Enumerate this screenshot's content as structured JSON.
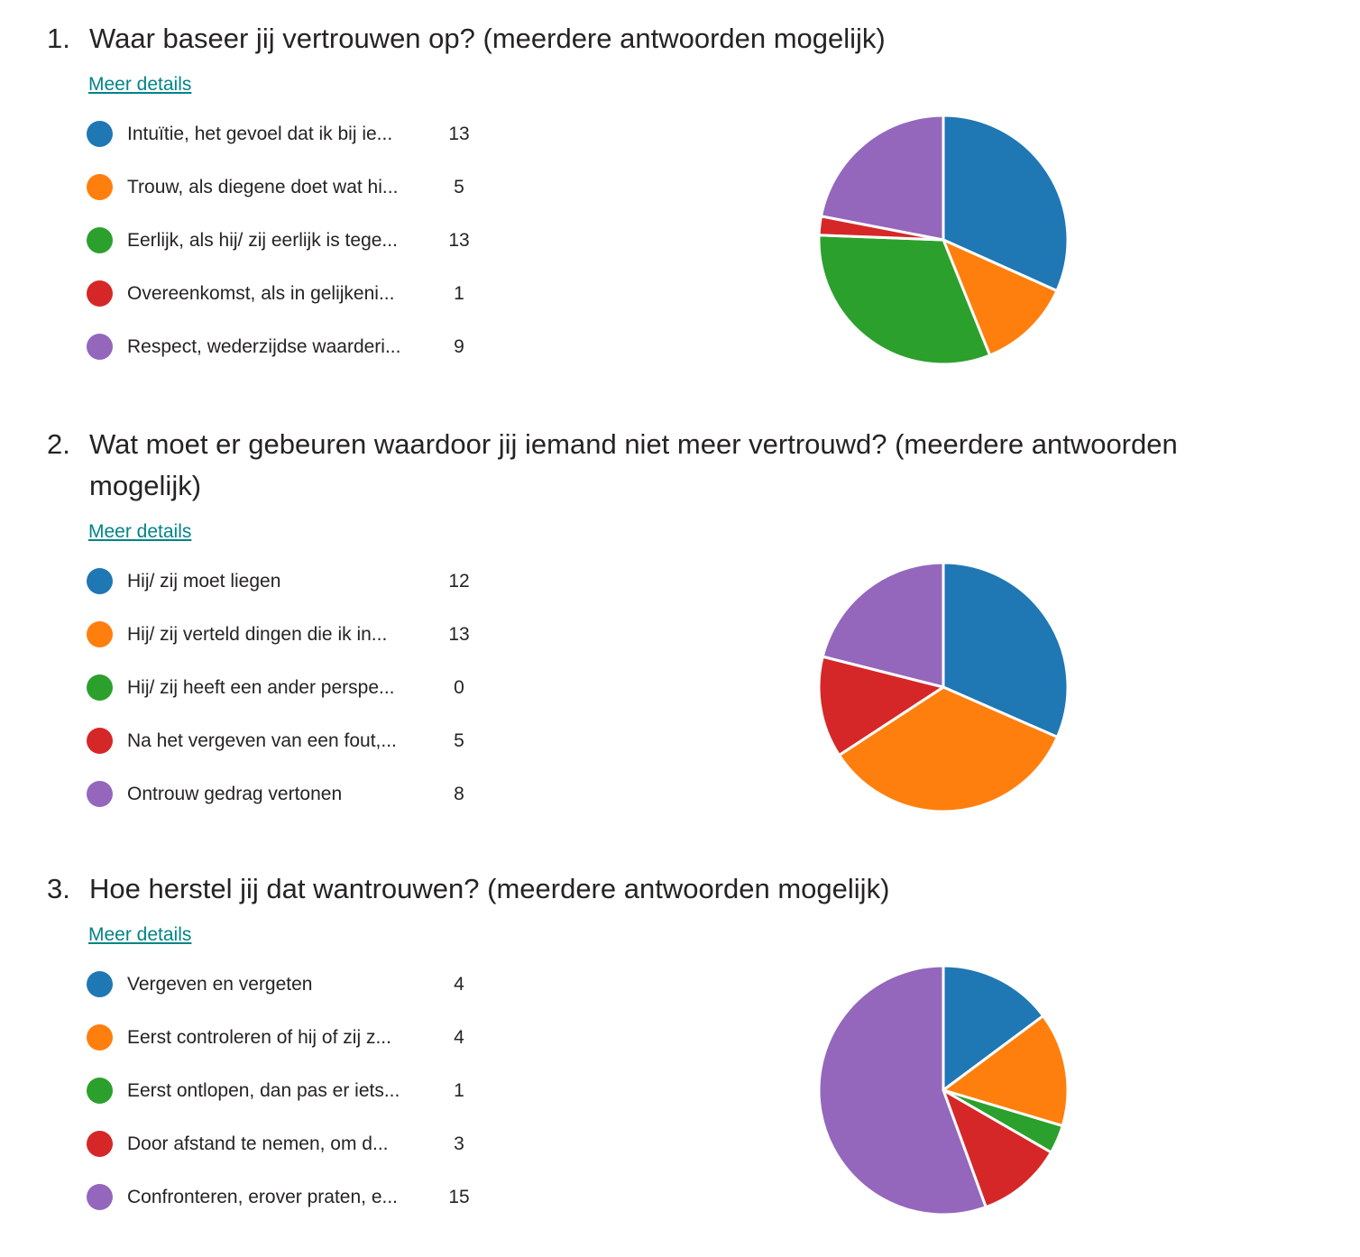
{
  "questions": [
    {
      "number": "1.",
      "title": "Waar baseer jij vertrouwen op? (meerdere antwoorden mogelijk)",
      "details_link": "Meer details",
      "options": [
        {
          "label": "Intuïtie, het gevoel dat ik bij ie...",
          "count": "13"
        },
        {
          "label": "Trouw, als diegene doet wat hi...",
          "count": "5"
        },
        {
          "label": "Eerlijk, als hij/ zij eerlijk is tege...",
          "count": "13"
        },
        {
          "label": "Overeenkomst, als in gelijkeni...",
          "count": "1"
        },
        {
          "label": "Respect, wederzijdse waarderi...",
          "count": "9"
        }
      ]
    },
    {
      "number": "2.",
      "title": "Wat moet er gebeuren waardoor jij iemand niet meer vertrouwd? (meerdere antwoorden mogelijk)",
      "details_link": "Meer details",
      "options": [
        {
          "label": "Hij/ zij moet liegen",
          "count": "12"
        },
        {
          "label": "Hij/ zij verteld dingen die ik in...",
          "count": "13"
        },
        {
          "label": "Hij/ zij heeft een ander perspe...",
          "count": "0"
        },
        {
          "label": "Na het vergeven van een fout,...",
          "count": "5"
        },
        {
          "label": "Ontrouw gedrag vertonen",
          "count": "8"
        }
      ]
    },
    {
      "number": "3.",
      "title": "Hoe herstel jij dat wantrouwen? (meerdere antwoorden mogelijk)",
      "details_link": "Meer details",
      "options": [
        {
          "label": "Vergeven en vergeten",
          "count": "4"
        },
        {
          "label": "Eerst controleren of hij of zij z...",
          "count": "4"
        },
        {
          "label": "Eerst ontlopen, dan pas er iets...",
          "count": "1"
        },
        {
          "label": "Door afstand te nemen, om d...",
          "count": "3"
        },
        {
          "label": "Confronteren, erover praten, e...",
          "count": "15"
        }
      ]
    }
  ],
  "colors": [
    "#1f77b4",
    "#ff7f0e",
    "#2ca02c",
    "#d62728",
    "#9467bd"
  ],
  "chart_data": [
    {
      "type": "pie",
      "categories": [
        "Intuïtie, het gevoel dat ik bij ie...",
        "Trouw, als diegene doet wat hi...",
        "Eerlijk, als hij/ zij eerlijk is tege...",
        "Overeenkomst, als in gelijkeni...",
        "Respect, wederzijdse waarderi..."
      ],
      "values": [
        13,
        5,
        13,
        1,
        9
      ]
    },
    {
      "type": "pie",
      "categories": [
        "Hij/ zij moet liegen",
        "Hij/ zij verteld dingen die ik in...",
        "Hij/ zij heeft een ander perspe...",
        "Na het vergeven van een fout,...",
        "Ontrouw gedrag vertonen"
      ],
      "values": [
        12,
        13,
        0,
        5,
        8
      ]
    },
    {
      "type": "pie",
      "categories": [
        "Vergeven en vergeten",
        "Eerst controleren of hij of zij z...",
        "Eerst ontlopen, dan pas er iets...",
        "Door afstand te nemen, om d...",
        "Confronteren, erover praten, e..."
      ],
      "values": [
        4,
        4,
        1,
        3,
        15
      ]
    }
  ]
}
